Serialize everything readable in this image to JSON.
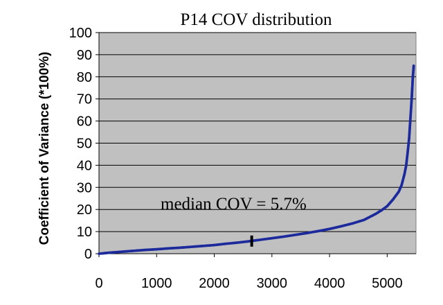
{
  "chart_data": {
    "type": "scatter",
    "title": "P14 COV distribution",
    "xlabel": "",
    "ylabel": "Coefficient of Variance (*100%)",
    "xlim": [
      0,
      5500
    ],
    "ylim": [
      0,
      100
    ],
    "x_ticks": [
      0,
      1000,
      2000,
      3000,
      4000,
      5000
    ],
    "y_ticks": [
      0,
      10,
      20,
      30,
      40,
      50,
      60,
      70,
      80,
      90,
      100
    ],
    "grid": true,
    "legend": "none",
    "plot_background": "#c0c0c0",
    "series_color": "#1c2a9c",
    "annotation": "median COV = 5.7%",
    "median_marker": {
      "x": 2650,
      "y": 5.7
    },
    "series": [
      {
        "points": [
          [
            0,
            0.0
          ],
          [
            200,
            0.5
          ],
          [
            400,
            0.9
          ],
          [
            600,
            1.3
          ],
          [
            800,
            1.7
          ],
          [
            1000,
            2.0
          ],
          [
            1200,
            2.4
          ],
          [
            1400,
            2.7
          ],
          [
            1600,
            3.1
          ],
          [
            1800,
            3.5
          ],
          [
            2000,
            3.9
          ],
          [
            2200,
            4.5
          ],
          [
            2400,
            5.0
          ],
          [
            2600,
            5.6
          ],
          [
            2800,
            6.3
          ],
          [
            3000,
            7.0
          ],
          [
            3200,
            7.7
          ],
          [
            3400,
            8.5
          ],
          [
            3600,
            9.3
          ],
          [
            3800,
            10.2
          ],
          [
            4000,
            11.2
          ],
          [
            4200,
            12.4
          ],
          [
            4400,
            13.7
          ],
          [
            4600,
            15.3
          ],
          [
            4800,
            18.0
          ],
          [
            4900,
            19.6
          ],
          [
            5000,
            21.5
          ],
          [
            5100,
            24.5
          ],
          [
            5200,
            28.0
          ],
          [
            5250,
            31.0
          ],
          [
            5300,
            36.0
          ],
          [
            5330,
            40.0
          ],
          [
            5360,
            47.0
          ],
          [
            5380,
            52.0
          ],
          [
            5400,
            60.0
          ],
          [
            5415,
            66.0
          ],
          [
            5425,
            70.0
          ],
          [
            5435,
            75.0
          ],
          [
            5445,
            80.0
          ],
          [
            5455,
            83.0
          ],
          [
            5460,
            85.0
          ]
        ]
      }
    ]
  }
}
